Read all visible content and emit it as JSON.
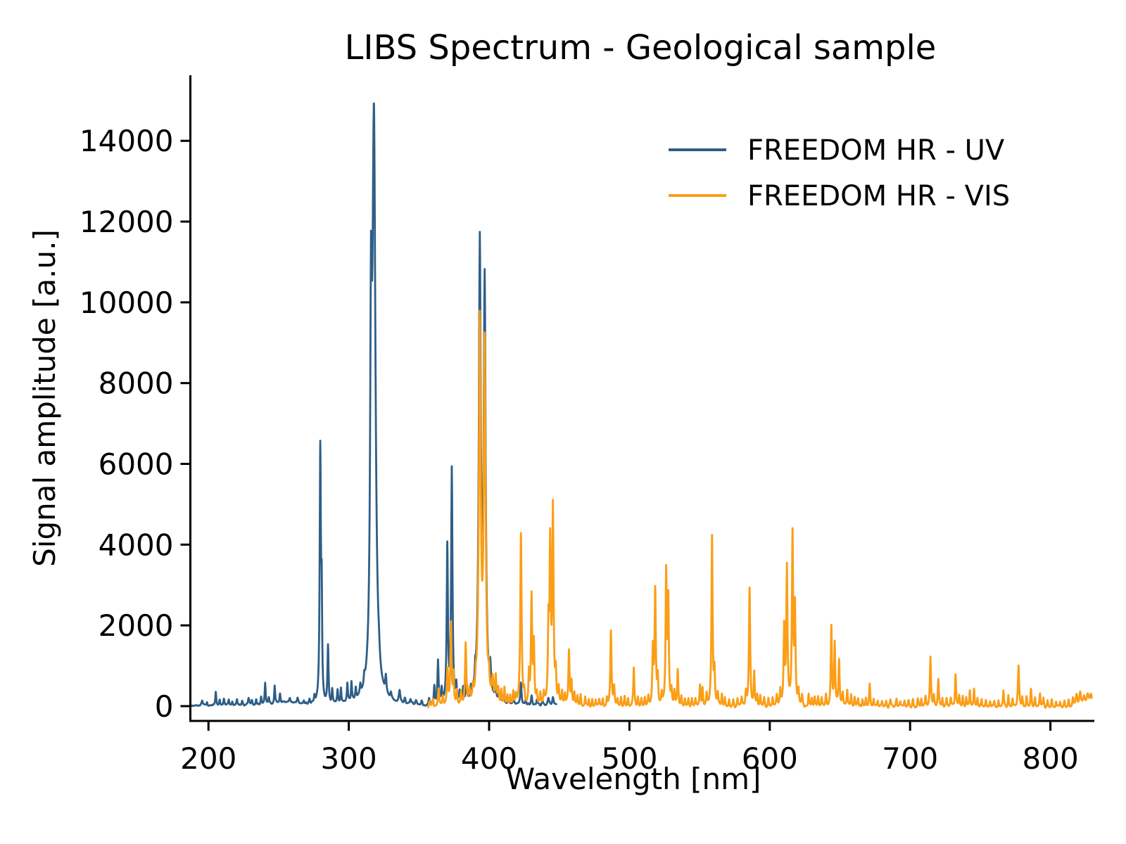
{
  "chart_data": {
    "type": "line",
    "title": "LIBS Spectrum - Geological sample",
    "xlabel": "Wavelength [nm]",
    "ylabel": "Signal amplitude [a.u.]",
    "xlim": [
      187.1,
      831.3
    ],
    "ylim": [
      -366,
      15624
    ],
    "xticks": [
      200,
      300,
      400,
      500,
      600,
      700,
      800
    ],
    "yticks": [
      0,
      2000,
      4000,
      6000,
      8000,
      10000,
      12000,
      14000
    ],
    "grid": false,
    "legend_position": "upper right",
    "series": [
      {
        "name": "FREEDOM HR - UV",
        "color": "#2E5E87",
        "wavelength_range_nm": [
          187.1,
          448.0
        ],
        "baseline": 15,
        "noise_amplitude": 30,
        "peaks_wl_amp_halfwidth": [
          [
            195.5,
            120,
            0.5
          ],
          [
            199,
            90,
            0.4
          ],
          [
            205.2,
            330,
            0.4
          ],
          [
            208,
            120,
            0.4
          ],
          [
            211,
            160,
            0.4
          ],
          [
            214.5,
            130,
            0.35
          ],
          [
            217,
            90,
            0.4
          ],
          [
            220.3,
            150,
            0.4
          ],
          [
            224,
            100,
            0.4
          ],
          [
            228.6,
            160,
            0.5
          ],
          [
            231,
            110,
            0.4
          ],
          [
            234,
            140,
            0.4
          ],
          [
            237.5,
            200,
            0.4
          ],
          [
            240.4,
            540,
            0.4
          ],
          [
            243,
            150,
            0.4
          ],
          [
            247.2,
            450,
            0.4
          ],
          [
            251,
            240,
            0.4
          ],
          [
            256,
            80,
            9
          ],
          [
            258,
            120,
            0.5
          ],
          [
            263.5,
            130,
            0.5
          ],
          [
            268,
            90,
            0.4
          ],
          [
            272,
            110,
            0.4
          ],
          [
            275.5,
            160,
            0.4
          ],
          [
            279.7,
            6300,
            0.5
          ],
          [
            280.7,
            2300,
            0.35
          ],
          [
            285.2,
            1450,
            0.45
          ],
          [
            288.2,
            350,
            0.4
          ],
          [
            292,
            320,
            0.4
          ],
          [
            294.4,
            380,
            0.4
          ],
          [
            299,
            450,
            0.4
          ],
          [
            301.9,
            480,
            0.4
          ],
          [
            305,
            260,
            0.4
          ],
          [
            308.2,
            230,
            0.45
          ],
          [
            311,
            200,
            0.5
          ],
          [
            315.85,
            7800,
            0.7
          ],
          [
            317.93,
            14100,
            1.3
          ],
          [
            321.5,
            180,
            0.5
          ],
          [
            326.4,
            430,
            0.5
          ],
          [
            330,
            150,
            0.5
          ],
          [
            336.2,
            310,
            0.6
          ],
          [
            340,
            130,
            0.5
          ],
          [
            344,
            110,
            0.5
          ],
          [
            348,
            100,
            0.5
          ],
          [
            352,
            90,
            0.5
          ],
          [
            357.2,
            170,
            0.5
          ],
          [
            361,
            460,
            0.45
          ],
          [
            363.6,
            1060,
            0.45
          ],
          [
            366.2,
            360,
            0.4
          ],
          [
            370.2,
            3850,
            0.5
          ],
          [
            373.4,
            5800,
            0.55
          ],
          [
            376.6,
            420,
            0.4
          ],
          [
            379,
            250,
            0.4
          ],
          [
            381.5,
            320,
            0.4
          ],
          [
            383.8,
            520,
            0.45
          ],
          [
            387,
            250,
            0.4
          ],
          [
            390.1,
            360,
            0.4
          ],
          [
            393.37,
            11200,
            0.85
          ],
          [
            396.85,
            10150,
            0.8
          ],
          [
            400.8,
            620,
            0.7
          ],
          [
            404.6,
            320,
            0.5
          ],
          [
            407,
            180,
            0.5
          ],
          [
            410.4,
            170,
            0.5
          ],
          [
            414,
            130,
            0.5
          ],
          [
            417.5,
            120,
            0.5
          ],
          [
            422.67,
            560,
            0.5
          ],
          [
            426,
            130,
            0.5
          ],
          [
            430.3,
            260,
            0.5
          ],
          [
            434,
            130,
            0.5
          ],
          [
            438,
            110,
            0.5
          ],
          [
            442.2,
            170,
            0.6
          ],
          [
            445.5,
            210,
            0.6
          ]
        ]
      },
      {
        "name": "FREEDOM HR - VIS",
        "color": "#FB9E17",
        "wavelength_range_nm": [
          356.5,
          829.5
        ],
        "baseline": -40,
        "noise_amplitude": 42,
        "peaks_wl_amp_halfwidth": [
          [
            357.5,
            150,
            0.5
          ],
          [
            360,
            200,
            0.5
          ],
          [
            364,
            430,
            0.5
          ],
          [
            367,
            250,
            0.45
          ],
          [
            370.3,
            900,
            0.5
          ],
          [
            372.8,
            2050,
            0.5
          ],
          [
            374.6,
            750,
            0.4
          ],
          [
            377,
            350,
            0.4
          ],
          [
            380,
            300,
            0.4
          ],
          [
            383.3,
            1520,
            0.5
          ],
          [
            386,
            320,
            0.4
          ],
          [
            388.5,
            280,
            0.4
          ],
          [
            390.5,
            300,
            0.4
          ],
          [
            393.37,
            9400,
            0.8
          ],
          [
            396.85,
            8800,
            0.78
          ],
          [
            399.8,
            480,
            0.5
          ],
          [
            402.5,
            520,
            0.6
          ],
          [
            404.7,
            680,
            0.5
          ],
          [
            406.5,
            350,
            0.4
          ],
          [
            408.6,
            380,
            0.4
          ],
          [
            410.9,
            420,
            0.4
          ],
          [
            413,
            260,
            0.4
          ],
          [
            415,
            240,
            0.4
          ],
          [
            417.2,
            320,
            0.4
          ],
          [
            419,
            260,
            0.4
          ],
          [
            422.67,
            4250,
            0.55
          ],
          [
            425,
            300,
            0.4
          ],
          [
            428.4,
            750,
            0.4
          ],
          [
            430.25,
            2700,
            0.5
          ],
          [
            431.9,
            1500,
            0.45
          ],
          [
            434,
            300,
            0.4
          ],
          [
            436.5,
            280,
            0.4
          ],
          [
            439,
            280,
            0.45
          ],
          [
            442.3,
            1850,
            0.5
          ],
          [
            443.5,
            3800,
            0.5
          ],
          [
            445.48,
            4850,
            0.55
          ],
          [
            447.5,
            700,
            0.45
          ],
          [
            449.6,
            420,
            0.45
          ],
          [
            452,
            320,
            0.4
          ],
          [
            454,
            280,
            0.4
          ],
          [
            456.9,
            1380,
            0.5
          ],
          [
            458.7,
            600,
            0.4
          ],
          [
            460.8,
            360,
            0.4
          ],
          [
            463,
            260,
            0.4
          ],
          [
            465.2,
            290,
            0.4
          ],
          [
            468.5,
            260,
            0.4
          ],
          [
            471,
            220,
            0.4
          ],
          [
            473.5,
            200,
            0.4
          ],
          [
            476,
            190,
            0.4
          ],
          [
            478.5,
            200,
            0.4
          ],
          [
            481,
            220,
            0.4
          ],
          [
            484,
            230,
            0.4
          ],
          [
            486.8,
            1900,
            0.5
          ],
          [
            489.1,
            480,
            0.4
          ],
          [
            491.5,
            220,
            0.4
          ],
          [
            494,
            210,
            0.4
          ],
          [
            496.6,
            260,
            0.4
          ],
          [
            499,
            230,
            0.4
          ],
          [
            503.1,
            950,
            0.45
          ],
          [
            506,
            220,
            0.4
          ],
          [
            508.5,
            210,
            0.4
          ],
          [
            511,
            240,
            0.4
          ],
          [
            513.5,
            280,
            0.4
          ],
          [
            516.7,
            1400,
            0.45
          ],
          [
            518.36,
            2850,
            0.5
          ],
          [
            520.2,
            700,
            0.4
          ],
          [
            523,
            280,
            0.4
          ],
          [
            526.2,
            3300,
            0.5
          ],
          [
            527.7,
            2550,
            0.45
          ],
          [
            530,
            400,
            0.4
          ],
          [
            532,
            350,
            0.4
          ],
          [
            534.4,
            900,
            0.45
          ],
          [
            537,
            260,
            0.4
          ],
          [
            539.5,
            220,
            0.4
          ],
          [
            542,
            200,
            0.4
          ],
          [
            544.5,
            210,
            0.4
          ],
          [
            547,
            230,
            0.4
          ],
          [
            550.3,
            520,
            0.45
          ],
          [
            552.1,
            420,
            0.4
          ],
          [
            555,
            300,
            0.4
          ],
          [
            558.87,
            4200,
            0.5
          ],
          [
            560.6,
            800,
            0.4
          ],
          [
            563,
            300,
            0.4
          ],
          [
            565.9,
            340,
            0.4
          ],
          [
            568,
            240,
            0.4
          ],
          [
            571,
            200,
            0.4
          ],
          [
            574,
            190,
            0.4
          ],
          [
            577,
            200,
            0.4
          ],
          [
            580,
            220,
            0.4
          ],
          [
            583,
            350,
            0.45
          ],
          [
            585.6,
            2950,
            0.5
          ],
          [
            588.9,
            830,
            0.4
          ],
          [
            591,
            280,
            0.4
          ],
          [
            593.2,
            290,
            0.4
          ],
          [
            596,
            220,
            0.4
          ],
          [
            599,
            210,
            0.4
          ],
          [
            602,
            230,
            0.4
          ],
          [
            605,
            260,
            0.45
          ],
          [
            607.5,
            400,
            0.45
          ],
          [
            610.27,
            1900,
            0.45
          ],
          [
            612.22,
            3400,
            0.5
          ],
          [
            616.22,
            4250,
            0.5
          ],
          [
            617.95,
            2350,
            0.45
          ],
          [
            620.5,
            350,
            0.4
          ],
          [
            623,
            260,
            0.4
          ],
          [
            627.7,
            340,
            0.4
          ],
          [
            630,
            230,
            0.4
          ],
          [
            632,
            240,
            0.4
          ],
          [
            634.5,
            260,
            0.4
          ],
          [
            637,
            240,
            0.4
          ],
          [
            640,
            300,
            0.45
          ],
          [
            643.9,
            2000,
            0.45
          ],
          [
            646.3,
            1580,
            0.45
          ],
          [
            649.4,
            1130,
            0.45
          ],
          [
            652,
            350,
            0.45
          ],
          [
            655.2,
            420,
            0.45
          ],
          [
            658,
            280,
            0.4
          ],
          [
            660.5,
            260,
            0.4
          ],
          [
            663,
            220,
            0.4
          ],
          [
            666,
            200,
            0.4
          ],
          [
            668.5,
            230,
            0.4
          ],
          [
            671.2,
            560,
            0.45
          ],
          [
            674,
            180,
            0.4
          ],
          [
            677,
            160,
            0.4
          ],
          [
            680,
            160,
            0.4
          ],
          [
            683,
            170,
            0.45
          ],
          [
            686,
            180,
            0.45
          ],
          [
            690.3,
            220,
            0.4
          ],
          [
            693,
            160,
            0.4
          ],
          [
            696,
            150,
            0.4
          ],
          [
            699,
            160,
            0.45
          ],
          [
            702,
            180,
            0.45
          ],
          [
            705.5,
            220,
            0.45
          ],
          [
            708,
            200,
            0.4
          ],
          [
            711,
            260,
            0.45
          ],
          [
            714.5,
            1230,
            0.45
          ],
          [
            717,
            300,
            0.4
          ],
          [
            720.1,
            690,
            0.45
          ],
          [
            723,
            240,
            0.4
          ],
          [
            726,
            210,
            0.4
          ],
          [
            729,
            260,
            0.45
          ],
          [
            732.4,
            820,
            0.45
          ],
          [
            735,
            260,
            0.4
          ],
          [
            737.5,
            280,
            0.4
          ],
          [
            740,
            260,
            0.4
          ],
          [
            742.6,
            430,
            0.4
          ],
          [
            745.6,
            460,
            0.4
          ],
          [
            748,
            240,
            0.4
          ],
          [
            751,
            200,
            0.4
          ],
          [
            754,
            170,
            0.4
          ],
          [
            757,
            160,
            0.4
          ],
          [
            760,
            170,
            0.4
          ],
          [
            763,
            200,
            0.4
          ],
          [
            766.5,
            390,
            0.4
          ],
          [
            770,
            280,
            0.4
          ],
          [
            773,
            200,
            0.4
          ],
          [
            777.3,
            1020,
            0.5
          ],
          [
            780,
            250,
            0.4
          ],
          [
            783,
            250,
            0.4
          ],
          [
            786.1,
            460,
            0.45
          ],
          [
            789,
            230,
            0.4
          ],
          [
            792.6,
            340,
            0.45
          ],
          [
            795,
            220,
            0.4
          ],
          [
            798,
            180,
            0.4
          ],
          [
            801,
            170,
            0.4
          ],
          [
            804,
            150,
            0.4
          ],
          [
            807,
            150,
            0.4
          ],
          [
            810,
            160,
            0.45
          ],
          [
            813,
            200,
            0.5
          ],
          [
            816,
            230,
            0.5
          ],
          [
            818.6,
            300,
            0.6
          ],
          [
            821.2,
            330,
            0.7
          ],
          [
            824,
            260,
            0.8
          ],
          [
            826.5,
            280,
            0.9
          ],
          [
            828.8,
            300,
            0.9
          ]
        ]
      }
    ]
  }
}
